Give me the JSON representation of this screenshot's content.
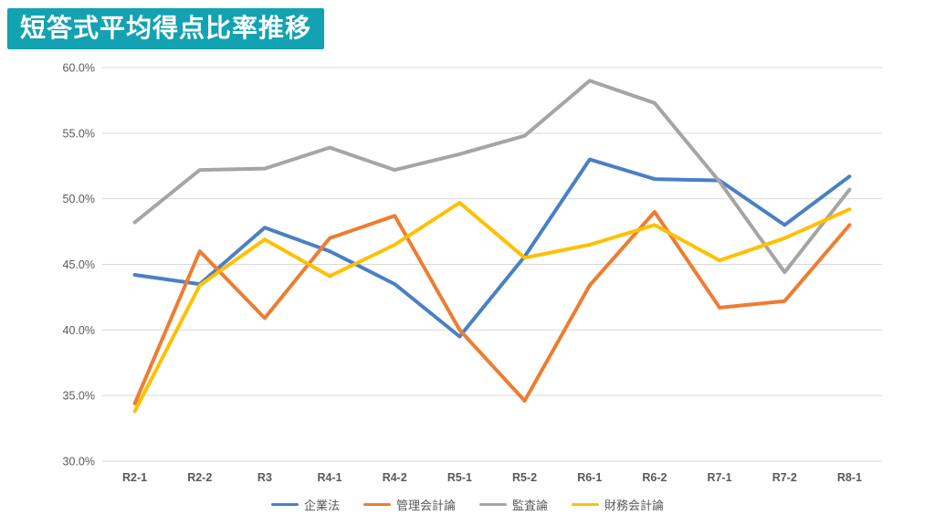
{
  "title": "短答式平均得点比率推移",
  "colors": {
    "title_bg": "#12a2b2",
    "grid": "#d9d9d9",
    "axis_text": "#595959"
  },
  "chart_data": {
    "type": "line",
    "title": "短答式平均得点比率推移",
    "categories": [
      "R2-1",
      "R2-2",
      "R3",
      "R4-1",
      "R4-2",
      "R5-1",
      "R5-2",
      "R6-1",
      "R6-2",
      "R7-1",
      "R7-2",
      "R8-1"
    ],
    "series": [
      {
        "name": "企業法",
        "color": "#4a80c4",
        "values": [
          44.2,
          43.5,
          47.8,
          46.0,
          43.5,
          39.5,
          45.6,
          53.0,
          51.5,
          51.4,
          48.0,
          51.7
        ]
      },
      {
        "name": "管理会計論",
        "color": "#ed7d31",
        "values": [
          34.4,
          46.0,
          40.9,
          47.0,
          48.7,
          40.0,
          34.6,
          43.4,
          49.0,
          41.7,
          42.2,
          48.0
        ]
      },
      {
        "name": "監査論",
        "color": "#a5a5a5",
        "values": [
          48.2,
          52.2,
          52.3,
          53.9,
          52.2,
          53.4,
          54.8,
          59.0,
          57.3,
          51.3,
          44.4,
          50.7
        ]
      },
      {
        "name": "財務会計論",
        "color": "#ffc000",
        "values": [
          33.8,
          43.4,
          46.9,
          44.1,
          46.5,
          49.7,
          45.5,
          46.5,
          48.0,
          45.3,
          47.0,
          49.2
        ]
      }
    ],
    "ylim": [
      30,
      60
    ],
    "ytick_step": 5,
    "ytick_suffix": "%",
    "ytick_decimals": 1,
    "grid": true,
    "legend_position": "bottom"
  }
}
